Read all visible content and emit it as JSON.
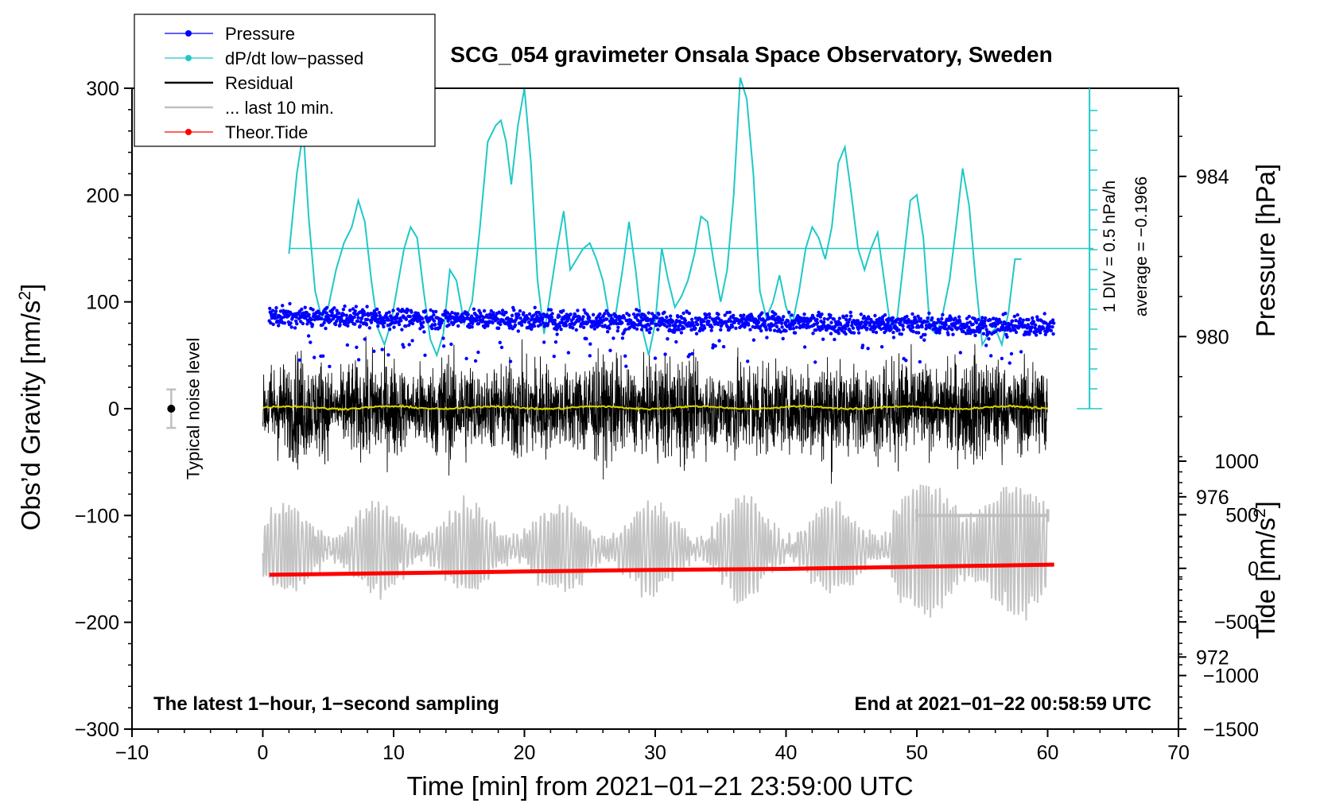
{
  "chart_data": {
    "type": "line",
    "title": "SCG_054 gravimeter Onsala Space Observatory, Sweden",
    "xlabel": "Time [min] from 2021−01−21 23:59:00 UTC",
    "xlim": [
      -10,
      70
    ],
    "xticks": [
      -10,
      0,
      10,
      20,
      30,
      40,
      50,
      60,
      70
    ],
    "xtick_labels": [
      "−10",
      "0",
      "10",
      "20",
      "30",
      "40",
      "50",
      "60",
      "70"
    ],
    "y_left": {
      "label": "Obs’d Gravity [nm/s²]",
      "label_main": "Obs’d Gravity [nm/s",
      "label_sup": "2",
      "label_end": "]",
      "lim": [
        -300,
        300
      ],
      "ticks": [
        -300,
        -200,
        -100,
        0,
        100,
        200,
        300
      ],
      "tick_labels": [
        "−300",
        "−200",
        "−100",
        "0",
        "100",
        "200",
        "300"
      ]
    },
    "y_right_pressure": {
      "label": "Pressure [hPa]",
      "lim": [
        970.2,
        986.2
      ],
      "ticks": [
        972,
        976,
        980,
        984
      ],
      "tick_labels": [
        "972",
        "976",
        "980",
        "984"
      ]
    },
    "y_right_tide": {
      "label": "Tide [nm/s²]",
      "label_main": "Tide [nm/s",
      "label_sup": "2",
      "label_end": "]",
      "lim": [
        -1500,
        1000
      ],
      "ticks": [
        -1500,
        -1000,
        -500,
        0,
        500,
        1000
      ],
      "tick_labels": [
        "−1500",
        "−1000",
        "−500",
        "0",
        "500",
        "1000"
      ]
    },
    "dpdt_axis": {
      "note_div": "1 DIV = 0.5 hPa/h",
      "note_avg": "average = −0.1966",
      "average_gravity_level": 150
    },
    "noise": {
      "label": "Typical noise level",
      "x": -7,
      "y": 0,
      "err": 18
    },
    "last10_range": {
      "x_start": 50,
      "x_end": 60,
      "y": -100
    },
    "annotation_left": "The latest 1−hour, 1−second sampling",
    "annotation_right": "End at 2021−01−22 00:58:59 UTC",
    "legend": {
      "position": "top-left",
      "entries": [
        {
          "label": "Pressure",
          "color": "#0000ff",
          "marker": true
        },
        {
          "label": "dP/dt low−passed",
          "color": "#20c8c8",
          "marker": true
        },
        {
          "label": "Residual",
          "color": "#000000",
          "marker": false
        },
        {
          "label": "... last 10 min.",
          "color": "#bfbfbf",
          "marker": false
        },
        {
          "label": "Theor.Tide",
          "color": "#ff0000",
          "marker": true
        }
      ]
    },
    "series": [
      {
        "name": "dP/dt low−passed",
        "color": "#20c8c8",
        "axis": "left",
        "x": [
          2.0,
          2.6,
          3.1,
          3.5,
          4.0,
          4.5,
          5.0,
          5.6,
          6.2,
          6.8,
          7.3,
          7.8,
          8.3,
          8.8,
          9.3,
          9.8,
          10.3,
          10.8,
          11.3,
          11.8,
          12.3,
          12.8,
          13.3,
          13.8,
          14.3,
          14.8,
          15.4,
          16.0,
          16.6,
          17.2,
          17.8,
          18.2,
          18.6,
          19.0,
          19.5,
          20.0,
          20.5,
          21.0,
          21.5,
          22.0,
          22.5,
          23.0,
          23.5,
          24.0,
          24.5,
          25.0,
          25.5,
          26.0,
          26.5,
          27.0,
          27.5,
          28.0,
          28.5,
          29.0,
          29.5,
          30.0,
          30.5,
          31.0,
          31.5,
          32.0,
          32.5,
          33.0,
          33.5,
          34.0,
          34.5,
          35.0,
          35.5,
          36.0,
          36.5,
          37.0,
          37.5,
          38.0,
          38.5,
          39.0,
          39.5,
          40.0,
          40.5,
          41.0,
          41.5,
          42.0,
          42.5,
          43.0,
          43.5,
          44.0,
          44.5,
          45.0,
          45.5,
          46.0,
          46.5,
          47.0,
          47.5,
          48.0,
          48.5,
          49.0,
          49.5,
          50.0,
          50.5,
          51.0,
          51.5,
          52.0,
          52.5,
          53.0,
          53.5,
          54.0,
          54.5,
          55.0,
          55.5,
          56.0,
          56.5,
          57.0,
          57.5,
          58.0
        ],
        "y": [
          145,
          220,
          260,
          180,
          110,
          85,
          95,
          130,
          155,
          170,
          195,
          175,
          120,
          75,
          60,
          80,
          115,
          150,
          170,
          160,
          110,
          65,
          50,
          70,
          130,
          120,
          80,
          100,
          170,
          250,
          265,
          270,
          250,
          210,
          265,
          300,
          230,
          120,
          70,
          110,
          150,
          185,
          130,
          140,
          150,
          155,
          140,
          120,
          85,
          90,
          130,
          175,
          130,
          75,
          50,
          80,
          150,
          120,
          95,
          105,
          120,
          145,
          180,
          175,
          135,
          100,
          130,
          200,
          310,
          290,
          220,
          110,
          85,
          100,
          125,
          95,
          80,
          110,
          150,
          170,
          160,
          140,
          170,
          230,
          245,
          200,
          150,
          130,
          150,
          165,
          120,
          75,
          85,
          140,
          195,
          200,
          160,
          75,
          70,
          90,
          120,
          170,
          225,
          190,
          120,
          60,
          70,
          75,
          60,
          90,
          140,
          140
        ]
      },
      {
        "name": "Theor.Tide",
        "color": "#ff0000",
        "axis": "tide",
        "x": [
          0.5,
          10,
          20,
          30,
          40,
          50,
          60.5
        ],
        "y": [
          -60,
          -45,
          -30,
          -15,
          -5,
          15,
          35
        ]
      }
    ]
  }
}
